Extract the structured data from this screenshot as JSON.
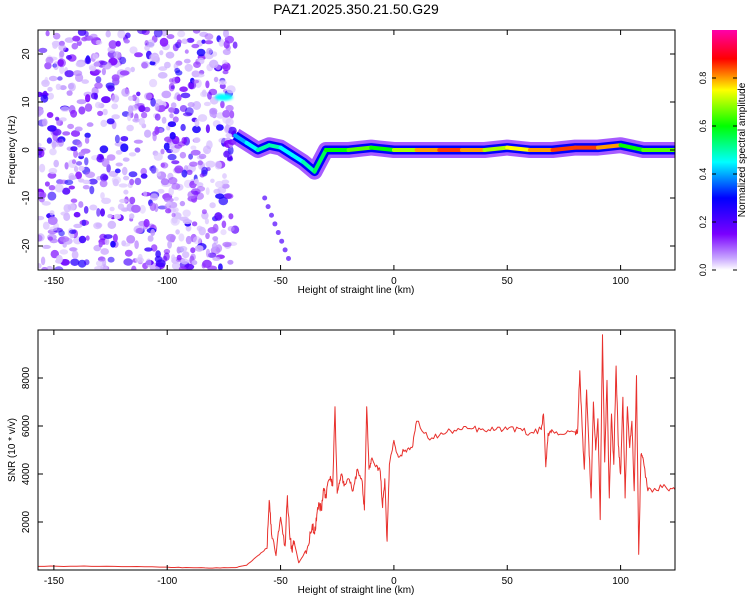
{
  "figure_title": "PAZ1.2025.350.21.50.G29",
  "colors": {
    "snr_line": "#e8312d",
    "axis": "#000000",
    "spectrogram_noise": "#8a3cff"
  },
  "chart_data": [
    {
      "type": "heatmap",
      "title": "PAZ1.2025.350.21.50.G29",
      "xlabel": "Height of straight line (km)",
      "ylabel": "Frequency (Hz)",
      "xlim": [
        -157,
        124
      ],
      "ylim": [
        -25,
        25
      ],
      "xticks": [
        -150,
        -100,
        -50,
        0,
        50,
        100
      ],
      "yticks": [
        -20,
        -10,
        0,
        10,
        20
      ],
      "colorbar": {
        "label": "Normalized spectral amplitude",
        "range": [
          0.0,
          1.0
        ],
        "ticks": [
          0.0,
          0.2,
          0.4,
          0.6,
          0.8
        ],
        "colormap": "rainbow (white-violet-blue-cyan-green-yellow-red-magenta)"
      },
      "features": [
        {
          "name": "noise region",
          "x_range": [
            -157,
            -70
          ],
          "freq_range": [
            -25,
            25
          ],
          "amplitude": [
            0.0,
            0.25
          ]
        },
        {
          "name": "early tone",
          "x": [
            -78,
            -72
          ],
          "freq": 11,
          "amplitude": 0.45
        },
        {
          "name": "descending track",
          "x": [
            -70,
            -33
          ],
          "freq": [
            3,
            -5
          ],
          "amplitude": 0.5
        },
        {
          "name": "carrier line",
          "x": [
            -33,
            124
          ],
          "freq": 0,
          "amplitude": [
            0.4,
            0.9
          ]
        }
      ],
      "track": {
        "x": [
          -70,
          -65,
          -60,
          -55,
          -50,
          -45,
          -40,
          -35,
          -30,
          -20,
          -10,
          0,
          10,
          20,
          30,
          40,
          50,
          60,
          70,
          80,
          90,
          100,
          110,
          124
        ],
        "freq": [
          3,
          1.5,
          0,
          1,
          0.5,
          -1,
          -2.5,
          -4.5,
          0,
          0,
          0.5,
          0,
          0,
          0,
          0,
          0,
          0.5,
          0,
          0,
          0.5,
          0.5,
          1,
          0,
          0
        ],
        "amplitude": [
          0.4,
          0.45,
          0.5,
          0.5,
          0.45,
          0.45,
          0.5,
          0.55,
          0.6,
          0.65,
          0.6,
          0.7,
          0.8,
          0.85,
          0.8,
          0.7,
          0.75,
          0.8,
          0.85,
          0.85,
          0.8,
          0.6,
          0.65,
          0.7
        ]
      },
      "grid": false
    },
    {
      "type": "line",
      "xlabel": "Height of straight line (km)",
      "ylabel": "SNR (10 * v/v)",
      "xlim": [
        -157,
        124
      ],
      "ylim": [
        0,
        10000
      ],
      "xticks": [
        -150,
        -100,
        -50,
        0,
        50,
        100
      ],
      "yticks": [
        2000,
        4000,
        6000,
        8000
      ],
      "grid": false,
      "series": [
        {
          "x": [
            -157,
            -140,
            -120,
            -100,
            -90,
            -80,
            -70,
            -65,
            -60,
            -56,
            -55,
            -54,
            -52,
            -50,
            -48,
            -47,
            -46,
            -45,
            -44,
            -42,
            -40,
            -38,
            -36,
            -35,
            -34,
            -33,
            -32,
            -31,
            -30,
            -29,
            -28,
            -27,
            -26,
            -25,
            -24,
            -23,
            -22,
            -20,
            -18,
            -16,
            -14,
            -13,
            -12,
            -11,
            -10,
            -8,
            -6,
            -5,
            -4,
            -3,
            -2,
            0,
            2,
            5,
            8,
            10,
            15,
            20,
            25,
            30,
            35,
            40,
            45,
            50,
            55,
            60,
            65,
            66,
            67,
            68,
            70,
            75,
            80,
            81,
            82,
            83,
            84,
            85,
            86,
            87,
            88,
            89,
            90,
            91,
            92,
            93,
            94,
            95,
            96,
            97,
            98,
            99,
            100,
            101,
            102,
            103,
            104,
            105,
            106,
            107,
            108,
            109,
            110,
            112,
            115,
            120,
            124
          ],
          "y": [
            150,
            160,
            140,
            120,
            100,
            80,
            100,
            200,
            600,
            900,
            2900,
            1500,
            600,
            2200,
            1000,
            3100,
            1500,
            800,
            1200,
            300,
            600,
            1000,
            1900,
            1500,
            2300,
            2800,
            2500,
            3400,
            3000,
            3700,
            3900,
            3500,
            6800,
            3200,
            3600,
            4000,
            3500,
            3800,
            3300,
            4200,
            3700,
            2500,
            6800,
            4200,
            4600,
            4300,
            4100,
            2600,
            3800,
            1200,
            4400,
            5400,
            4700,
            5000,
            5100,
            6200,
            5500,
            5600,
            5800,
            5850,
            5900,
            5800,
            5850,
            5850,
            5900,
            5700,
            5850,
            6500,
            4300,
            5700,
            5800,
            5650,
            5750,
            5700,
            8300,
            6000,
            4200,
            7500,
            5200,
            3000,
            7000,
            5000,
            6300,
            2100,
            9800,
            4500,
            7900,
            3000,
            6500,
            4400,
            8500,
            5200,
            4000,
            7200,
            3000,
            6800,
            5100,
            6200,
            3300,
            8100,
            650,
            4800,
            4600,
            3300,
            3400,
            3450,
            3350
          ]
        }
      ]
    }
  ]
}
